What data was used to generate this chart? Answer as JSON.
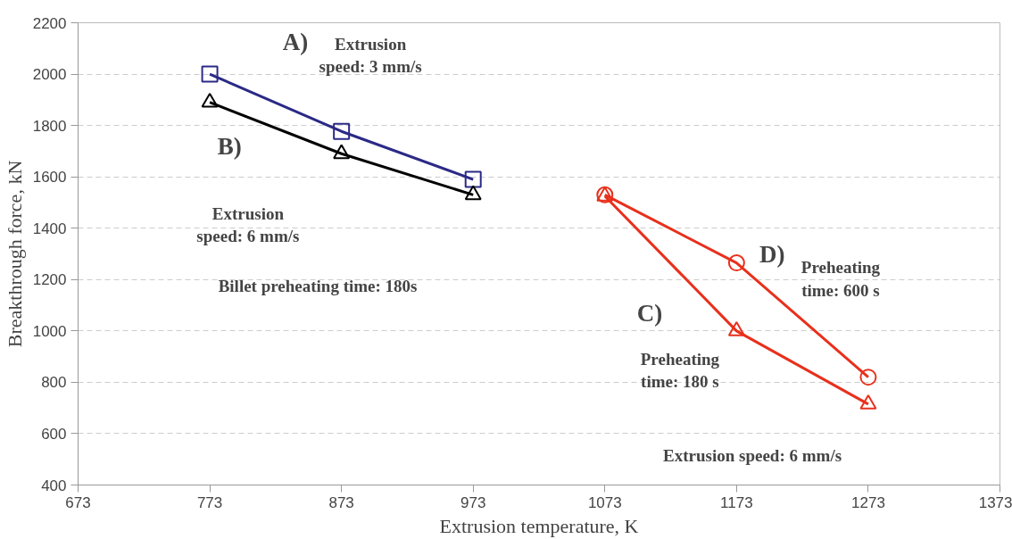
{
  "chart_data": {
    "type": "line",
    "xlabel": "Extrusion temperature, K",
    "ylabel": "Breakthrough force, kN",
    "xlim": [
      673,
      1373
    ],
    "xticks": [
      673,
      773,
      873,
      973,
      1073,
      1173,
      1273,
      1373
    ],
    "ylim": [
      400,
      2200
    ],
    "yticks": [
      400,
      600,
      800,
      1000,
      1200,
      1400,
      1600,
      1800,
      2000,
      2200
    ],
    "grid": "y",
    "line_style": "solid",
    "series": [
      {
        "color": "#2b2a86",
        "marker": "square",
        "x": [
          773,
          873,
          973
        ],
        "values": [
          2000,
          1777,
          1590
        ]
      },
      {
        "color": "#000000",
        "marker": "triangle",
        "x": [
          773,
          873,
          973
        ],
        "values": [
          1890,
          1690,
          1530
        ]
      },
      {
        "color": "#e8301c",
        "marker": "triangle",
        "x": [
          1073,
          1173,
          1273
        ],
        "values": [
          1525,
          1000,
          715
        ]
      },
      {
        "color": "#e8301c",
        "marker": "circle",
        "x": [
          1073,
          1173,
          1273
        ],
        "values": [
          1530,
          1265,
          820
        ]
      }
    ],
    "annotations": [
      "A)",
      "Extrusion\nspeed: 3 mm/s",
      "B)",
      "Extrusion\nspeed: 6 mm/s",
      "Billet preheating time: 180s",
      "D)",
      "Preheating\ntime: 600 s",
      "C)",
      "Preheating\ntime: 180 s",
      "Extrusion speed: 6 mm/s"
    ]
  }
}
